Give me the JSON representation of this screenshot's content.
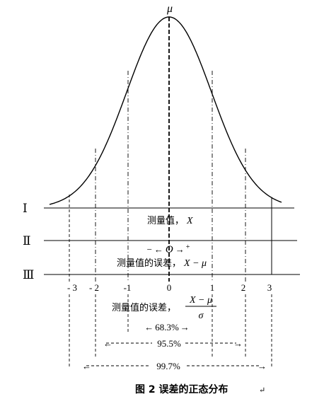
{
  "mu_label": "μ",
  "rows": [
    {
      "label": "Ⅰ"
    },
    {
      "label": "Ⅱ"
    },
    {
      "label": "Ⅲ"
    }
  ],
  "measured_value_label": "测量值，",
  "measured_value_var": "X",
  "origin_line": {
    "minus": "−",
    "left_arrow": "←",
    "origin": "O",
    "right_arrow": "→",
    "plus": "+"
  },
  "error_label": "测量值的误差，",
  "error_expr": "X − μ",
  "sigma_ticks": [
    "- 3",
    "- 2",
    "-1",
    "0",
    "1",
    "2",
    "3"
  ],
  "std_error_label": "测量值的误差，",
  "std_error_numerator": "X − μ",
  "std_error_denominator": "σ",
  "intervals": [
    {
      "left_arrow": "←",
      "label": "68.3%",
      "right_arrow": "→"
    },
    {
      "left_arrow": "←",
      "label": "95.5%",
      "right_arrow": "→"
    },
    {
      "left_arrow": "←",
      "label": "99.7%",
      "right_arrow": "→"
    }
  ],
  "caption": "图 2  误差的正态分布",
  "caption_mark": "↵"
}
